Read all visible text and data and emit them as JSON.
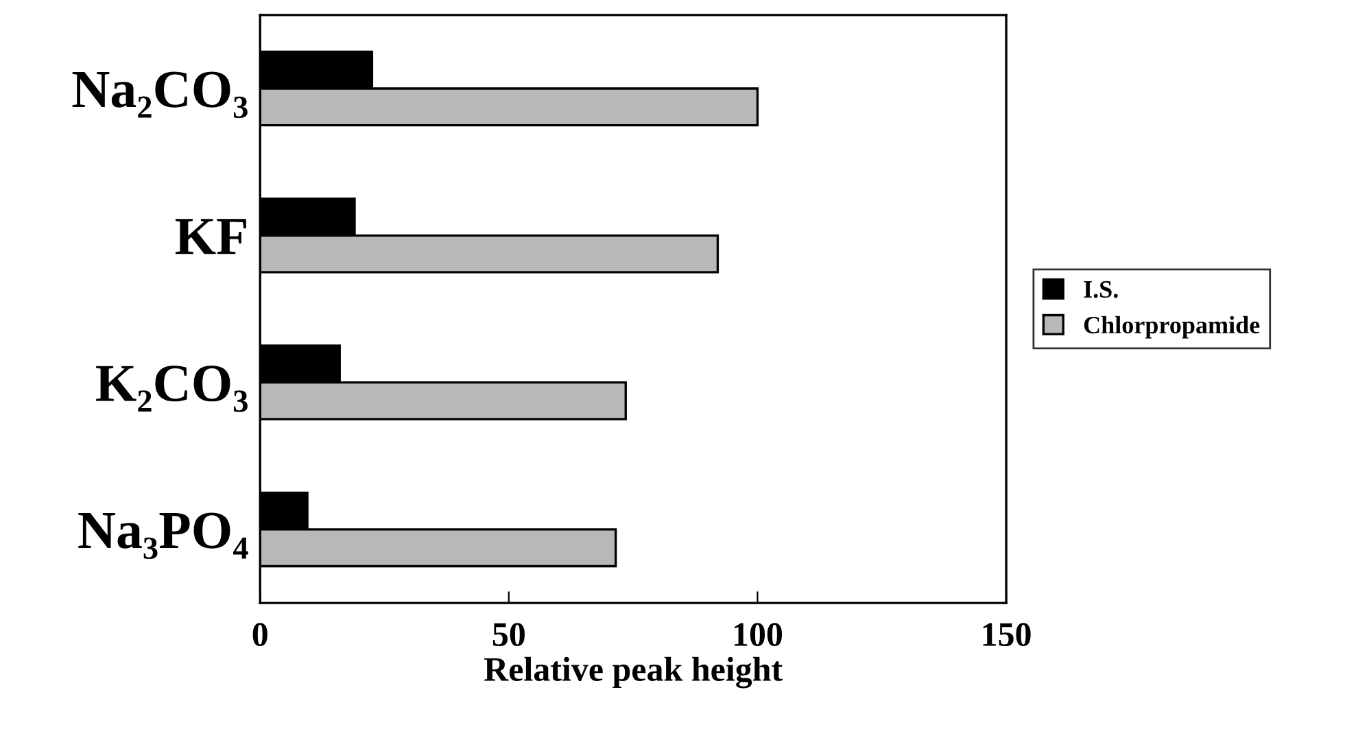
{
  "chart_data": {
    "type": "bar",
    "orientation": "horizontal",
    "xlabel": "Relative peak height",
    "categories": [
      "Na₂CO₃",
      "KF",
      "K₂CO₃",
      "Na₃PO₄"
    ],
    "series": [
      {
        "name": "I.S.",
        "color": "#000000",
        "values": [
          22.5,
          19,
          16,
          9.5
        ]
      },
      {
        "name": "Chlorpropamide",
        "color": "#b8b8b8",
        "values": [
          100,
          92,
          73.5,
          71.5
        ]
      }
    ],
    "xlim": [
      0,
      150
    ],
    "xticks": [
      0,
      50,
      100,
      150
    ],
    "grid": false,
    "legend": "right"
  }
}
